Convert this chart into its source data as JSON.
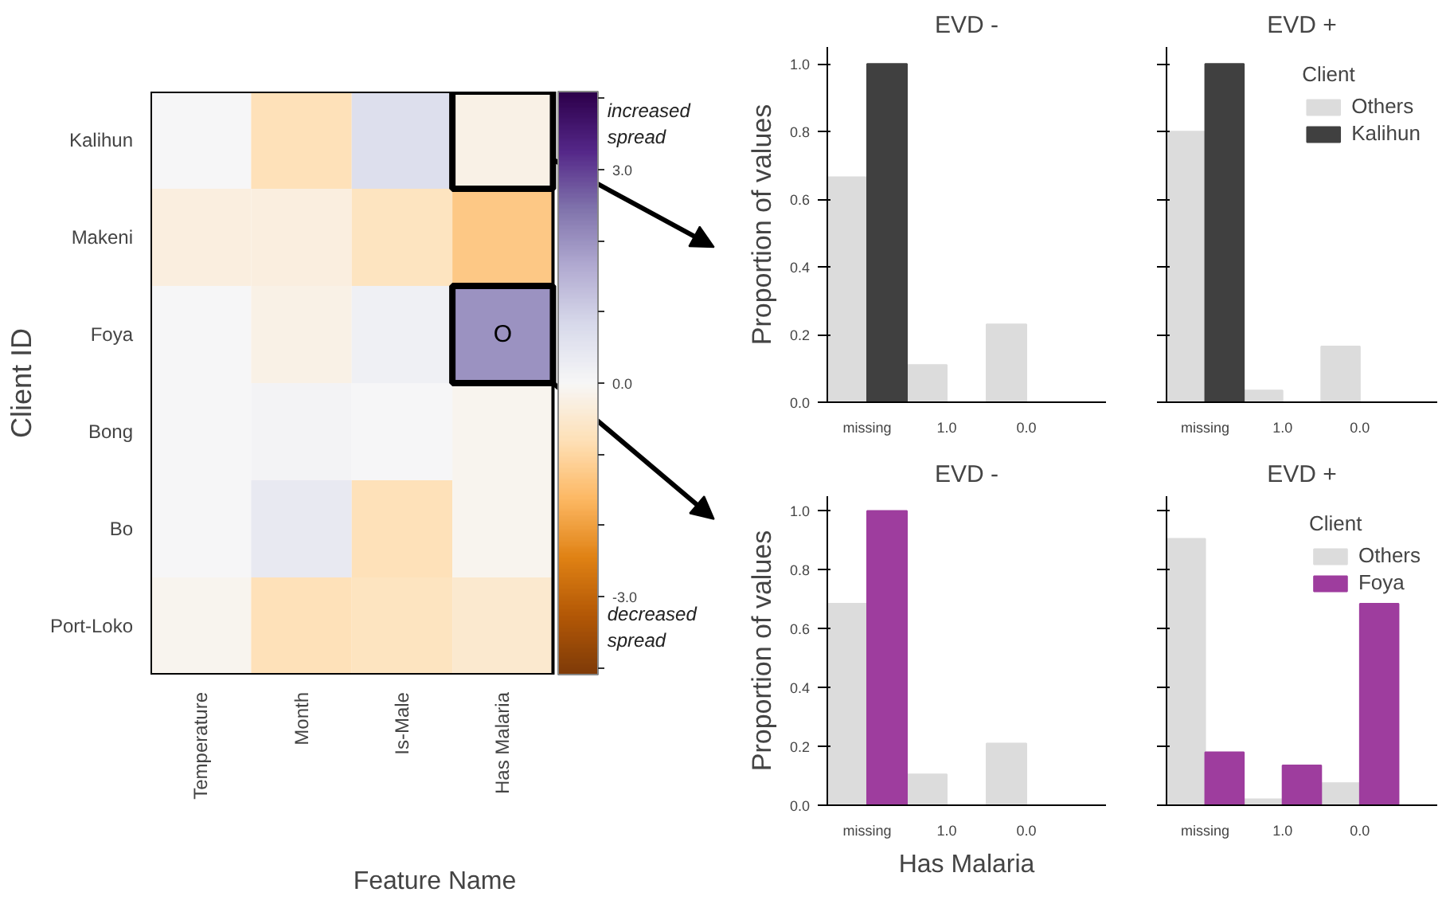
{
  "chart_data": [
    {
      "type": "heatmap",
      "xlabel": "Feature Name",
      "ylabel": "Client ID",
      "categories": [
        "Temperature",
        "Month",
        "Is-Male",
        "Has Malaria"
      ],
      "y_categories": [
        "Kalihun",
        "Makeni",
        "Foya",
        "Bong",
        "Bo",
        "Port-Loko"
      ],
      "cells": [
        [
          0.0,
          -0.8,
          0.7,
          -0.2
        ],
        [
          -0.3,
          -0.3,
          -0.7,
          -1.3
        ],
        [
          0.0,
          -0.2,
          0.2,
          2.0
        ],
        [
          0.0,
          0.1,
          0.0,
          -0.1
        ],
        [
          0.0,
          0.4,
          -0.8,
          -0.1
        ],
        [
          -0.1,
          -0.8,
          -0.7,
          -0.5
        ]
      ],
      "cell_labels": [
        [
          null,
          null,
          null,
          null
        ],
        [
          null,
          null,
          null,
          null
        ],
        [
          null,
          null,
          null,
          "O"
        ],
        [
          null,
          null,
          null,
          null
        ],
        [
          null,
          null,
          null,
          null
        ],
        [
          null,
          null,
          null,
          null
        ]
      ],
      "clim": [
        -4.1,
        4.1
      ],
      "cticks": [
        {
          "value": -4,
          "label": null
        },
        {
          "value": -3,
          "label": "-3.0"
        },
        {
          "value": -2,
          "label": null
        },
        {
          "value": -1,
          "label": null
        },
        {
          "value": 0,
          "label": "0.0"
        },
        {
          "value": 1,
          "label": null
        },
        {
          "value": 2,
          "label": null
        },
        {
          "value": 3,
          "label": "3.0"
        },
        {
          "value": 4,
          "label": null
        }
      ],
      "annotations": [
        "increased spread",
        "decreased spread"
      ],
      "grid": false
    },
    {
      "type": "bar",
      "title": "EVD -",
      "ylabel": "Proportion of values",
      "categories": [
        "missing",
        "1.0",
        "0.0"
      ],
      "ylim": [
        0,
        1.05
      ],
      "yticks": [
        {
          "value": 0,
          "label": "0.0"
        },
        {
          "value": 0.2,
          "label": "0.2"
        },
        {
          "value": 0.4,
          "label": "0.4"
        },
        {
          "value": 0.6,
          "label": "0.6"
        },
        {
          "value": 0.8,
          "label": "0.8"
        },
        {
          "value": 1,
          "label": "1.0"
        }
      ],
      "grid": false,
      "series": [
        {
          "color": "#dcdcdc",
          "values": [
            0.665,
            0.11,
            0.23
          ]
        },
        {
          "color": "#404040",
          "values": [
            1.0,
            0,
            0
          ]
        }
      ]
    },
    {
      "type": "bar",
      "title": "EVD +",
      "categories": [
        "missing",
        "1.0",
        "0.0"
      ],
      "ylim": [
        0,
        1.05
      ],
      "yticks": [
        {
          "value": 0,
          "label": null
        },
        {
          "value": 0.2,
          "label": null
        },
        {
          "value": 0.4,
          "label": null
        },
        {
          "value": 0.6,
          "label": null
        },
        {
          "value": 0.8,
          "label": null
        },
        {
          "value": 1,
          "label": null
        }
      ],
      "tick_labels": "x",
      "grid": false,
      "legend": "top right",
      "legend_title": "Client",
      "series": [
        {
          "name": "Others",
          "color": "#dcdcdc",
          "values": [
            0.8,
            0.035,
            0.165
          ]
        },
        {
          "name": "Kalihun",
          "color": "#404040",
          "values": [
            1.0,
            0,
            0
          ]
        }
      ]
    },
    {
      "type": "bar",
      "title": "EVD -",
      "ylabel": "Proportion of values",
      "xlabel": "Has Malaria",
      "categories": [
        "missing",
        "1.0",
        "0.0"
      ],
      "ylim": [
        0,
        1.05
      ],
      "yticks": [
        {
          "value": 0,
          "label": "0.0"
        },
        {
          "value": 0.2,
          "label": "0.2"
        },
        {
          "value": 0.4,
          "label": "0.4"
        },
        {
          "value": 0.6,
          "label": "0.6"
        },
        {
          "value": 0.8,
          "label": "0.8"
        },
        {
          "value": 1,
          "label": "1.0"
        }
      ],
      "grid": false,
      "series": [
        {
          "color": "#dcdcdc",
          "values": [
            0.685,
            0.105,
            0.21
          ]
        },
        {
          "color": "#9e3d9e",
          "values": [
            1.0,
            0,
            0
          ]
        }
      ]
    },
    {
      "type": "bar",
      "title": "EVD +",
      "categories": [
        "missing",
        "1.0",
        "0.0"
      ],
      "ylim": [
        0,
        1.05
      ],
      "yticks": [
        {
          "value": 0,
          "label": null
        },
        {
          "value": 0.2,
          "label": null
        },
        {
          "value": 0.4,
          "label": null
        },
        {
          "value": 0.6,
          "label": null
        },
        {
          "value": 0.8,
          "label": null
        },
        {
          "value": 1,
          "label": null
        }
      ],
      "tick_labels": "x",
      "grid": false,
      "legend": "top right",
      "legend_title": "Client",
      "series": [
        {
          "name": "Others",
          "color": "#dcdcdc",
          "values": [
            0.905,
            0.02,
            0.075
          ]
        },
        {
          "name": "Foya",
          "color": "#9e3d9e",
          "values": [
            0.18,
            0.135,
            0.685
          ]
        }
      ]
    }
  ]
}
